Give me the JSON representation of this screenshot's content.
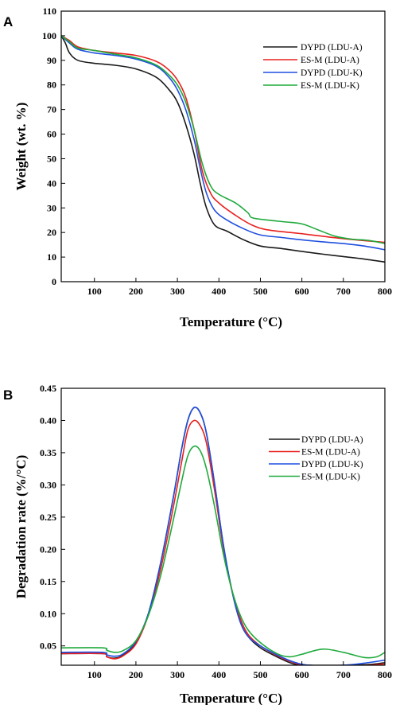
{
  "chart_data": [
    {
      "panel": "A",
      "type": "line",
      "xlabel": "Temperature (°C)",
      "ylabel": "Weight (wt. %)",
      "xlim": [
        20,
        800
      ],
      "ylim": [
        0,
        110
      ],
      "x_ticks": [
        100,
        200,
        300,
        400,
        500,
        600,
        700,
        800
      ],
      "y_ticks": [
        0,
        10,
        20,
        30,
        40,
        50,
        60,
        70,
        80,
        90,
        100,
        110
      ],
      "legend_position": "top-right",
      "series": [
        {
          "name": "DYPD (LDU-A)",
          "color": "#1a1a1a",
          "points": [
            [
              20,
              100
            ],
            [
              30,
              97
            ],
            [
              40,
              93
            ],
            [
              60,
              90
            ],
            [
              100,
              88.8
            ],
            [
              150,
              88
            ],
            [
              200,
              86.5
            ],
            [
              250,
              83
            ],
            [
              280,
              78
            ],
            [
              300,
              73
            ],
            [
              320,
              64
            ],
            [
              340,
              52
            ],
            [
              355,
              40
            ],
            [
              370,
              30
            ],
            [
              390,
              23
            ],
            [
              420,
              20.5
            ],
            [
              460,
              17
            ],
            [
              500,
              14.5
            ],
            [
              550,
              13.5
            ],
            [
              600,
              12.3
            ],
            [
              650,
              11.2
            ],
            [
              700,
              10.2
            ],
            [
              750,
              9.2
            ],
            [
              800,
              8
            ]
          ]
        },
        {
          "name": "ES-M (LDU-A)",
          "color": "#e8201e",
          "points": [
            [
              20,
              100
            ],
            [
              40,
              98
            ],
            [
              60,
              95.5
            ],
            [
              100,
              94
            ],
            [
              150,
              93
            ],
            [
              200,
              92
            ],
            [
              250,
              89.5
            ],
            [
              280,
              86
            ],
            [
              300,
              82
            ],
            [
              320,
              75
            ],
            [
              340,
              62
            ],
            [
              360,
              45
            ],
            [
              380,
              36
            ],
            [
              400,
              32
            ],
            [
              440,
              27
            ],
            [
              480,
              23
            ],
            [
              520,
              21
            ],
            [
              600,
              19.5
            ],
            [
              700,
              17.5
            ],
            [
              800,
              16
            ]
          ]
        },
        {
          "name": "DYPD (LDU-K)",
          "color": "#1f4fe0",
          "points": [
            [
              20,
              100
            ],
            [
              40,
              97
            ],
            [
              60,
              94.5
            ],
            [
              100,
              93
            ],
            [
              150,
              92
            ],
            [
              200,
              90.5
            ],
            [
              250,
              87.5
            ],
            [
              280,
              83
            ],
            [
              300,
              78
            ],
            [
              320,
              70
            ],
            [
              340,
              58
            ],
            [
              355,
              46
            ],
            [
              370,
              36
            ],
            [
              390,
              29
            ],
            [
              420,
              25
            ],
            [
              460,
              21.5
            ],
            [
              500,
              19
            ],
            [
              550,
              18
            ],
            [
              600,
              17
            ],
            [
              650,
              16.2
            ],
            [
              700,
              15.5
            ],
            [
              750,
              14.5
            ],
            [
              800,
              13
            ]
          ]
        },
        {
          "name": "ES-M (LDU-K)",
          "color": "#1faa3c",
          "points": [
            [
              20,
              100
            ],
            [
              40,
              97.5
            ],
            [
              60,
              95
            ],
            [
              100,
              94
            ],
            [
              150,
              92.5
            ],
            [
              200,
              91
            ],
            [
              250,
              88
            ],
            [
              280,
              84
            ],
            [
              300,
              80
            ],
            [
              320,
              73
            ],
            [
              340,
              62
            ],
            [
              360,
              48
            ],
            [
              380,
              39
            ],
            [
              400,
              35.5
            ],
            [
              440,
              32
            ],
            [
              470,
              28
            ],
            [
              480,
              26
            ],
            [
              520,
              25
            ],
            [
              560,
              24.3
            ],
            [
              600,
              23.5
            ],
            [
              640,
              21
            ],
            [
              680,
              18.5
            ],
            [
              720,
              17.3
            ],
            [
              760,
              16.8
            ],
            [
              800,
              15.5
            ]
          ]
        }
      ]
    },
    {
      "panel": "B",
      "type": "line",
      "xlabel": "Temperature (°C)",
      "ylabel": "Degradation rate (%/°C)",
      "xlim": [
        20,
        800
      ],
      "ylim": [
        0.02,
        0.45
      ],
      "x_ticks": [
        100,
        200,
        300,
        400,
        500,
        600,
        700,
        800
      ],
      "y_ticks": [
        0.05,
        0.1,
        0.15,
        0.2,
        0.25,
        0.3,
        0.35,
        0.4,
        0.45
      ],
      "y_tick_labels": [
        "0.05",
        "0.10",
        "0.15",
        "0.20",
        "0.25",
        "0.30",
        "0.35",
        "0.40",
        "0.45"
      ],
      "legend_position": "right",
      "series": [
        {
          "name": "DYPD (LDU-A)",
          "color": "#1a1a1a",
          "points": [
            [
              20,
              0.038
            ],
            [
              120,
              0.038
            ],
            [
              130,
              0.033
            ],
            [
              150,
              0.031
            ],
            [
              170,
              0.036
            ],
            [
              200,
              0.055
            ],
            [
              230,
              0.1
            ],
            [
              260,
              0.18
            ],
            [
              290,
              0.28
            ],
            [
              310,
              0.355
            ],
            [
              325,
              0.4
            ],
            [
              340,
              0.42
            ],
            [
              355,
              0.412
            ],
            [
              370,
              0.38
            ],
            [
              390,
              0.3
            ],
            [
              410,
              0.21
            ],
            [
              430,
              0.14
            ],
            [
              450,
              0.09
            ],
            [
              470,
              0.065
            ],
            [
              500,
              0.047
            ],
            [
              540,
              0.033
            ],
            [
              580,
              0.022
            ],
            [
              620,
              0.02
            ],
            [
              700,
              0.02
            ],
            [
              760,
              0.021
            ],
            [
              800,
              0.024
            ]
          ]
        },
        {
          "name": "ES-M (LDU-A)",
          "color": "#e8201e",
          "points": [
            [
              20,
              0.038
            ],
            [
              120,
              0.038
            ],
            [
              130,
              0.033
            ],
            [
              150,
              0.03
            ],
            [
              170,
              0.035
            ],
            [
              200,
              0.053
            ],
            [
              230,
              0.098
            ],
            [
              260,
              0.17
            ],
            [
              290,
              0.265
            ],
            [
              310,
              0.335
            ],
            [
              325,
              0.385
            ],
            [
              340,
              0.4
            ],
            [
              355,
              0.392
            ],
            [
              370,
              0.365
            ],
            [
              390,
              0.29
            ],
            [
              410,
              0.205
            ],
            [
              430,
              0.14
            ],
            [
              450,
              0.095
            ],
            [
              470,
              0.068
            ],
            [
              500,
              0.05
            ],
            [
              540,
              0.035
            ],
            [
              580,
              0.024
            ],
            [
              620,
              0.019
            ],
            [
              700,
              0.019
            ],
            [
              760,
              0.02
            ],
            [
              800,
              0.022
            ]
          ]
        },
        {
          "name": "DYPD (LDU-K)",
          "color": "#1f4fe0",
          "points": [
            [
              20,
              0.04
            ],
            [
              120,
              0.04
            ],
            [
              130,
              0.036
            ],
            [
              150,
              0.034
            ],
            [
              170,
              0.038
            ],
            [
              200,
              0.057
            ],
            [
              230,
              0.1
            ],
            [
              260,
              0.18
            ],
            [
              290,
              0.28
            ],
            [
              310,
              0.355
            ],
            [
              325,
              0.4
            ],
            [
              340,
              0.42
            ],
            [
              355,
              0.412
            ],
            [
              370,
              0.38
            ],
            [
              390,
              0.3
            ],
            [
              410,
              0.21
            ],
            [
              430,
              0.14
            ],
            [
              450,
              0.09
            ],
            [
              470,
              0.065
            ],
            [
              500,
              0.05
            ],
            [
              540,
              0.036
            ],
            [
              580,
              0.025
            ],
            [
              620,
              0.02
            ],
            [
              700,
              0.02
            ],
            [
              760,
              0.024
            ],
            [
              800,
              0.028
            ]
          ]
        },
        {
          "name": "ES-M (LDU-K)",
          "color": "#1faa3c",
          "points": [
            [
              20,
              0.047
            ],
            [
              120,
              0.047
            ],
            [
              130,
              0.043
            ],
            [
              150,
              0.04
            ],
            [
              170,
              0.043
            ],
            [
              200,
              0.058
            ],
            [
              230,
              0.097
            ],
            [
              260,
              0.16
            ],
            [
              290,
              0.245
            ],
            [
              310,
              0.305
            ],
            [
              325,
              0.345
            ],
            [
              340,
              0.36
            ],
            [
              355,
              0.353
            ],
            [
              370,
              0.325
            ],
            [
              390,
              0.265
            ],
            [
              410,
              0.195
            ],
            [
              430,
              0.14
            ],
            [
              450,
              0.1
            ],
            [
              470,
              0.075
            ],
            [
              500,
              0.055
            ],
            [
              540,
              0.038
            ],
            [
              570,
              0.033
            ],
            [
              600,
              0.037
            ],
            [
              650,
              0.045
            ],
            [
              700,
              0.04
            ],
            [
              750,
              0.032
            ],
            [
              780,
              0.033
            ],
            [
              800,
              0.04
            ]
          ]
        }
      ]
    }
  ]
}
